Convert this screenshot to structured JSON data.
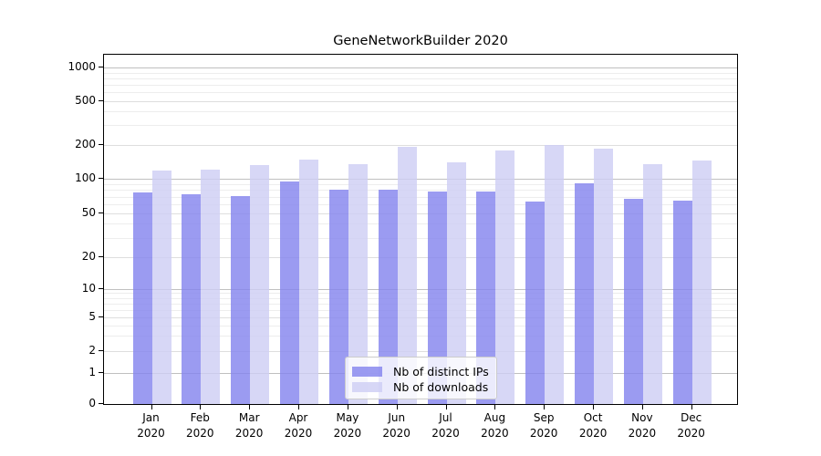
{
  "title": "GeneNetworkBuilder 2020",
  "chart_data": {
    "type": "bar",
    "title": "GeneNetworkBuilder 2020",
    "x_months": [
      "Jan",
      "Feb",
      "Mar",
      "Apr",
      "May",
      "Jun",
      "Jul",
      "Aug",
      "Sep",
      "Oct",
      "Nov",
      "Dec"
    ],
    "x_year": "2020",
    "series": [
      {
        "name": "Nb of distinct IPs",
        "color": "rgba(130,130,238,0.8)",
        "values": [
          76,
          73,
          71,
          95,
          81,
          80,
          78,
          77,
          63,
          91,
          67,
          64
        ]
      },
      {
        "name": "Nb of downloads",
        "color": "rgba(205,205,244,0.8)",
        "values": [
          119,
          121,
          133,
          148,
          136,
          192,
          141,
          178,
          201,
          186,
          136,
          146
        ]
      }
    ],
    "y_ticks": [
      0,
      1,
      2,
      5,
      10,
      20,
      50,
      100,
      200,
      500,
      1000
    ],
    "y_scale": "asinh (log-like, includes 0)",
    "ylim": [
      0,
      1300
    ],
    "grid": true,
    "legend_position": "lower center",
    "legend_entries": [
      "Nb of distinct IPs",
      "Nb of downloads"
    ]
  },
  "colors": {
    "background": "#ffffff",
    "spine": "#000000",
    "grid_decade": "#c0c0c0",
    "grid_labeled": "#dedede",
    "grid_minor": "#ededed",
    "bar_distinct_ips_displayed": "#9b9bf0",
    "bar_downloads_displayed": "#d7d7f6"
  }
}
